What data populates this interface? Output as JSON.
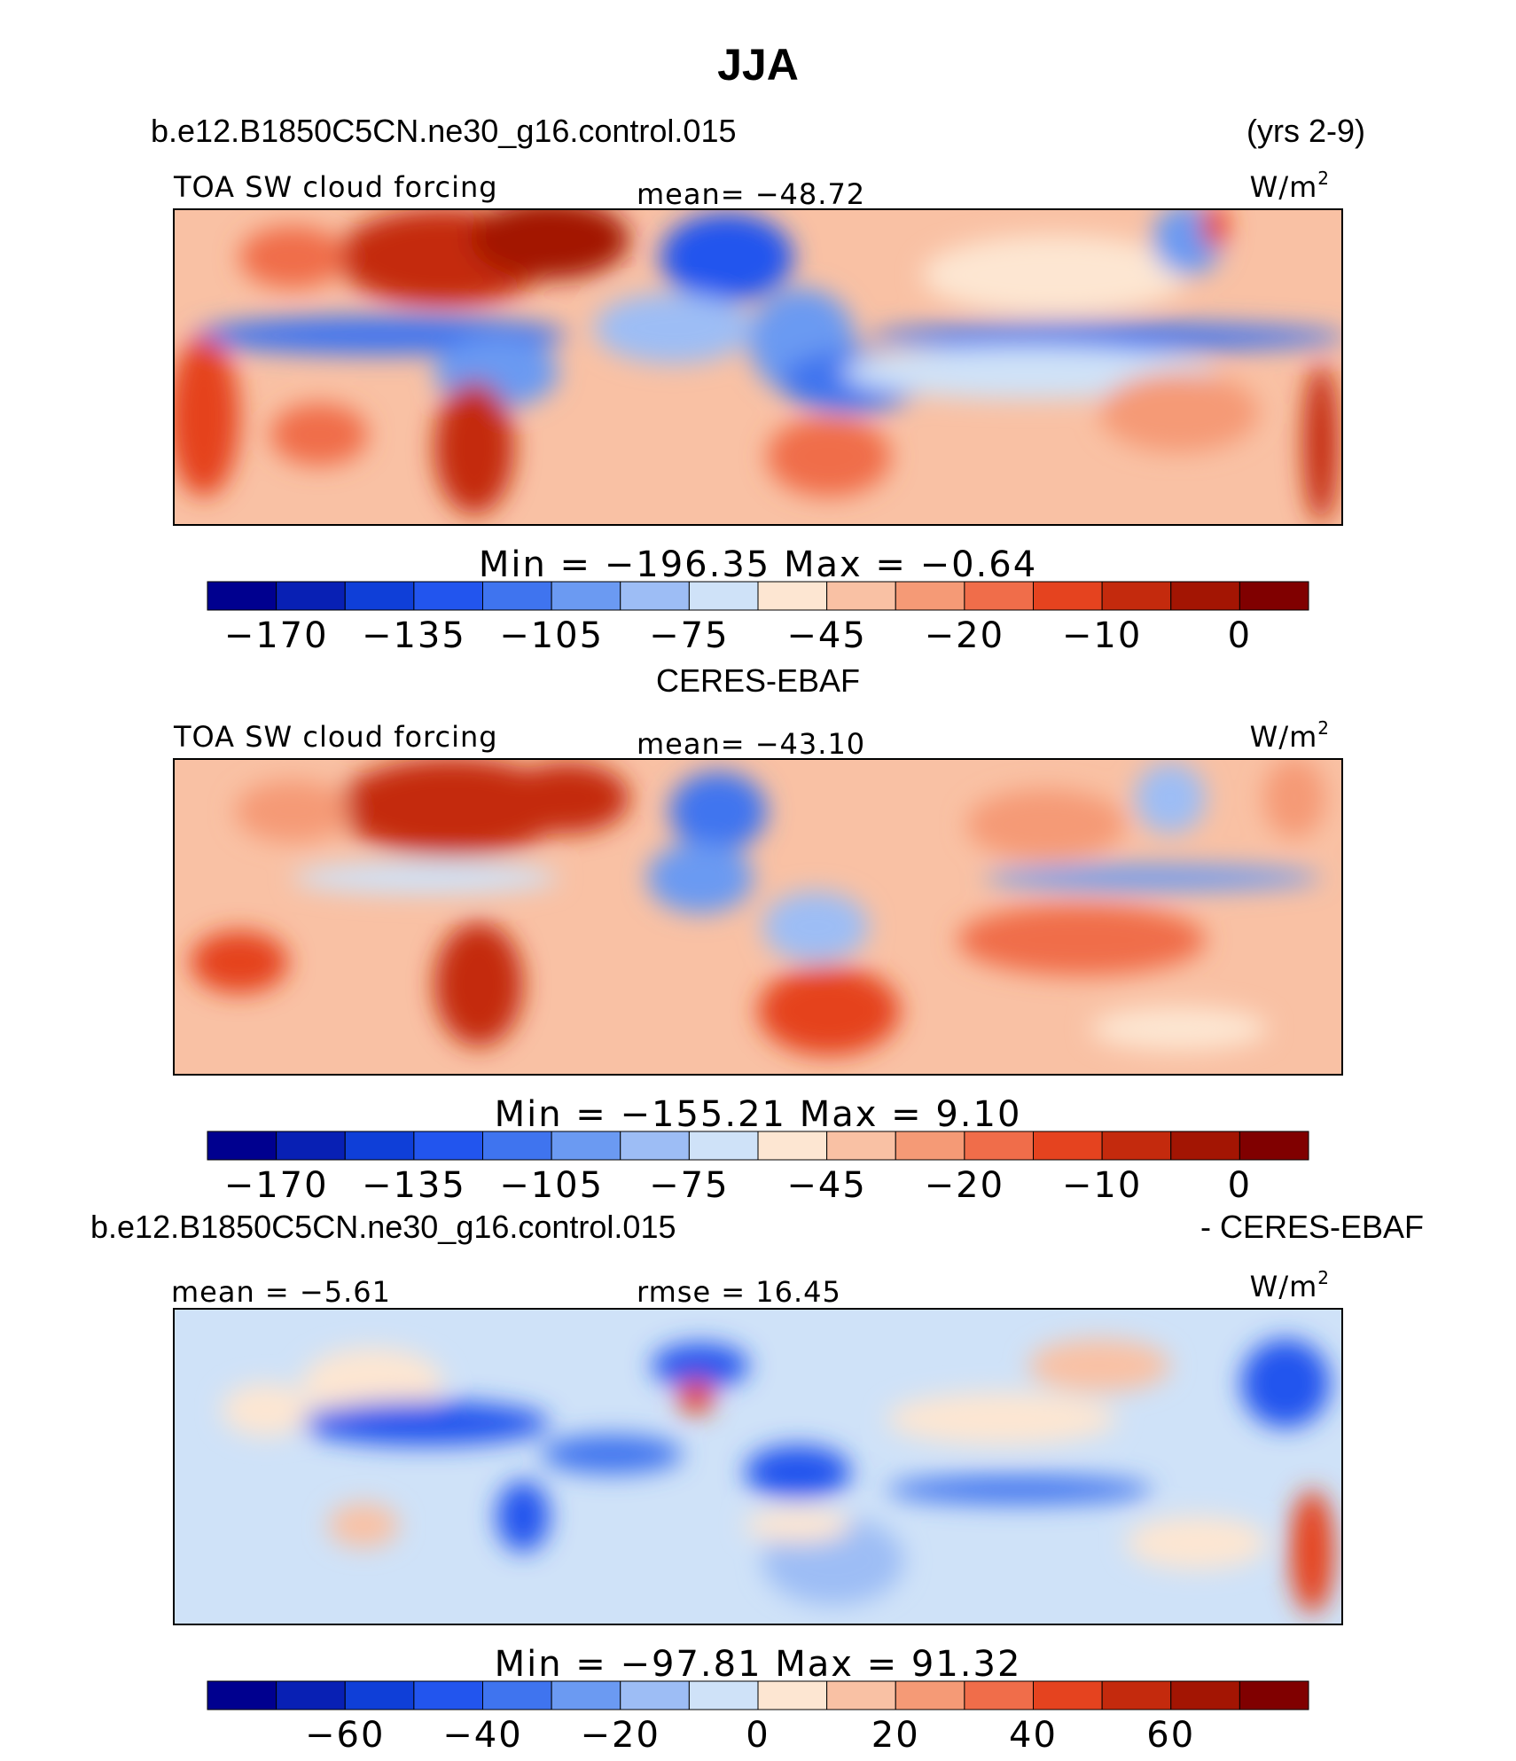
{
  "figure": {
    "title": "JJA",
    "case_name": "b.e12.B1850C5CN.ne30_g16.control.015",
    "years": "(yrs 2-9)"
  },
  "chart_data": [
    {
      "type": "heatmap",
      "variable": "TOA SW cloud forcing",
      "units": "W/m",
      "units_sup": "2",
      "mean_label": "mean= −48.72",
      "mean": -48.72,
      "min": -196.35,
      "max": -0.64,
      "minmax_label": "Min  =  −196.35  Max  =    −0.64",
      "colorbar_ticks": [
        "−170",
        "−135",
        "−105",
        "−75",
        "−45",
        "−20",
        "−10",
        "0"
      ],
      "colorbar_levels": [
        -170,
        -150,
        -135,
        -120,
        -105,
        -90,
        -75,
        -60,
        -45,
        -30,
        -20,
        -15,
        -10,
        -5,
        0
      ],
      "colors": [
        "#00008f",
        "#0820b4",
        "#0f3fd8",
        "#2255ee",
        "#3f74ef",
        "#6b9af2",
        "#9dbdf5",
        "#cfe2f8",
        "#fde6d2",
        "#f9c1a4",
        "#f59a76",
        "#f06d4a",
        "#e5431f",
        "#c42a0d",
        "#a31503",
        "#800000"
      ]
    },
    {
      "type": "heatmap",
      "heading": "CERES-EBAF",
      "variable": "TOA SW cloud forcing",
      "units": "W/m",
      "units_sup": "2",
      "mean_label": "mean= −43.10",
      "mean": -43.1,
      "min": -155.21,
      "max": 9.1,
      "minmax_label": "Min  =  −155.21  Max  =     9.10",
      "colorbar_ticks": [
        "−170",
        "−135",
        "−105",
        "−75",
        "−45",
        "−20",
        "−10",
        "0"
      ],
      "colorbar_levels": [
        -170,
        -150,
        -135,
        -120,
        -105,
        -90,
        -75,
        -60,
        -45,
        -30,
        -20,
        -15,
        -10,
        -5,
        0
      ],
      "colors": [
        "#00008f",
        "#0820b4",
        "#0f3fd8",
        "#2255ee",
        "#3f74ef",
        "#6b9af2",
        "#9dbdf5",
        "#cfe2f8",
        "#fde6d2",
        "#f9c1a4",
        "#f59a76",
        "#f06d4a",
        "#e5431f",
        "#c42a0d",
        "#a31503",
        "#800000"
      ]
    },
    {
      "type": "heatmap",
      "heading_left": "b.e12.B1850C5CN.ne30_g16.control.015",
      "heading_right": "- CERES-EBAF",
      "units": "W/m",
      "units_sup": "2",
      "mean_label": "mean =   −5.61",
      "mean": -5.61,
      "rmse_label": "rmse  =   16.45",
      "rmse": 16.45,
      "min": -97.81,
      "max": 91.32,
      "minmax_label": "Min  =  −97.81  Max  =   91.32",
      "colorbar_ticks": [
        "−60",
        "−40",
        "−20",
        "0",
        "20",
        "40",
        "60"
      ],
      "colorbar_levels": [
        -70,
        -60,
        -50,
        -40,
        -30,
        -20,
        -10,
        0,
        10,
        20,
        30,
        40,
        50,
        60,
        70
      ],
      "colors": [
        "#00008f",
        "#0820b4",
        "#0f3fd8",
        "#2255ee",
        "#3f74ef",
        "#6b9af2",
        "#9dbdf5",
        "#cfe2f8",
        "#fde6d2",
        "#f9c1a4",
        "#f59a76",
        "#f06d4a",
        "#e5431f",
        "#c42a0d",
        "#a31503",
        "#800000"
      ]
    }
  ]
}
